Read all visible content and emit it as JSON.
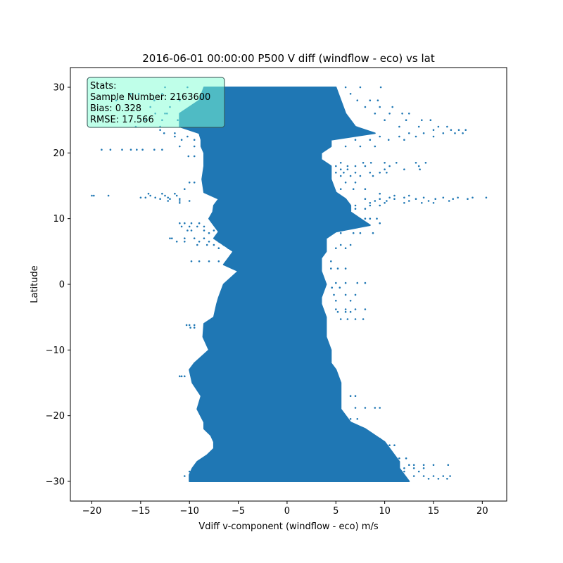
{
  "chart_data": {
    "type": "scatter",
    "title": "2016-06-01 00:00:00 P500 V diff (windflow - eco) vs lat",
    "xlabel": "Vdiff v-component (windflow - eco) m/s",
    "ylabel": "Latitude",
    "xlim": [
      -22.2,
      22.5
    ],
    "ylim": [
      -33,
      33
    ],
    "xticks": [
      -20,
      -15,
      -10,
      -5,
      0,
      5,
      10,
      15,
      20
    ],
    "xtick_labels": [
      "−20",
      "−15",
      "−10",
      "−5",
      "0",
      "5",
      "10",
      "15",
      "20"
    ],
    "yticks": [
      -30,
      -20,
      -10,
      0,
      10,
      20,
      30
    ],
    "ytick_labels": [
      "−30",
      "−20",
      "−10",
      "0",
      "10",
      "20",
      "30"
    ],
    "grid": false,
    "marker_color": "#1f77b4",
    "series": [
      {
        "envelope": {
          "lat": [
            30,
            28,
            26,
            24,
            23,
            22,
            21,
            20,
            19,
            18,
            16,
            14,
            13,
            12,
            11,
            10,
            9,
            8,
            7,
            6,
            5,
            4,
            3,
            2,
            0,
            -2,
            -3,
            -5,
            -6,
            -8,
            -10,
            -12,
            -13,
            -15,
            -17,
            -19,
            -21,
            -22,
            -23,
            -24,
            -25,
            -26,
            -27,
            -28,
            -29,
            -30
          ],
          "left": [
            -8.5,
            -9,
            -11,
            -11,
            -9,
            -8.8,
            -8.8,
            -8.5,
            -8.5,
            -8.5,
            -8.7,
            -8.5,
            -7,
            -7.5,
            -7.6,
            -8,
            -7.5,
            -7,
            -7.5,
            -6.5,
            -5.5,
            -6,
            -6.5,
            -5,
            -6.5,
            -7,
            -7.2,
            -7.5,
            -8.5,
            -8.6,
            -8,
            -9.5,
            -10,
            -9.7,
            -8.8,
            -9.2,
            -8.5,
            -8.5,
            -7.8,
            -7.5,
            -7.5,
            -8.2,
            -9.2,
            -9.7,
            -10,
            -10
          ],
          "right": [
            5,
            5.5,
            6,
            7,
            9,
            4.5,
            4.5,
            3.5,
            3.5,
            4.5,
            4.5,
            5,
            6,
            6.5,
            6.5,
            7.5,
            8.5,
            5,
            4,
            4,
            4,
            3.5,
            3.5,
            3.5,
            4,
            3.5,
            3.5,
            4,
            4,
            4,
            4.5,
            4.5,
            5,
            5.5,
            5.5,
            5.5,
            6.5,
            8,
            9,
            10,
            10.5,
            11,
            11.5,
            11.5,
            12,
            12.5
          ]
        },
        "outliers": [
          {
            "lat": 30,
            "x": [
              6.0,
              7.5,
              9.6,
              -10.2,
              -12.5
            ]
          },
          {
            "lat": 29,
            "x": [
              6.5,
              -12.8,
              -15.2,
              -16.0
            ]
          },
          {
            "lat": 28,
            "x": [
              7.2,
              8.5,
              9.3,
              -11.0,
              -13.6,
              -17.5
            ]
          },
          {
            "lat": 27,
            "x": [
              8.0,
              9.5,
              10.8,
              -12.0,
              -14.0
            ]
          },
          {
            "lat": 26,
            "x": [
              9.0,
              10.5,
              12.5,
              11.8,
              -12.5,
              -13.5,
              -12.3
            ]
          },
          {
            "lat": 25,
            "x": [
              10.0,
              12.2,
              13.8,
              14.7,
              -11.2,
              -12.8,
              -14.5
            ]
          },
          {
            "lat": 24,
            "x": [
              11.5,
              13.5,
              15.5,
              16.4,
              -13.0,
              -15.5
            ]
          },
          {
            "lat": 23.5,
            "x": [
              15.0,
              16.8,
              17.6,
              18.3,
              -13.0
            ]
          },
          {
            "lat": 23,
            "x": [
              12.5,
              14.0,
              16.0,
              17.2,
              18.0,
              -11.5,
              -12.6
            ]
          },
          {
            "lat": 22.5,
            "x": [
              9.5,
              11.5,
              13.2,
              15.0,
              -10.2,
              -11.5
            ]
          },
          {
            "lat": 22,
            "x": [
              7.0,
              8.5,
              10.4,
              12.0,
              -9.5,
              -10.8
            ]
          },
          {
            "lat": 21,
            "x": [
              6.0,
              7.5,
              9.0,
              -9.5,
              -11.0
            ]
          },
          {
            "lat": 20.5,
            "x": [
              -14.8,
              -15.4,
              -16.0,
              -16.9,
              -18.1,
              -19.0,
              -12.8,
              -13.6
            ]
          },
          {
            "lat": 19.5,
            "x": [
              -9.5,
              -10.1
            ]
          },
          {
            "lat": 18.5,
            "x": [
              5.5,
              7.8,
              8.6,
              10.0,
              11.2,
              13.2,
              14.2
            ]
          },
          {
            "lat": 18,
            "x": [
              5.0,
              6.2,
              7.0,
              8.0,
              10.5,
              13.5
            ]
          },
          {
            "lat": 17.5,
            "x": [
              5.5,
              6.2,
              10.0,
              12.0,
              13.6
            ]
          },
          {
            "lat": 17,
            "x": [
              5.0,
              5.8,
              7.0,
              8.5,
              9.5,
              10.2
            ]
          },
          {
            "lat": 16.5,
            "x": [
              5.5,
              6.5,
              7.5,
              8.8
            ]
          },
          {
            "lat": 15.5,
            "x": [
              -9.5,
              -10.0,
              6.0,
              7.0
            ]
          },
          {
            "lat": 14.5,
            "x": [
              -10.5,
              5.5,
              6.8,
              8.0
            ]
          },
          {
            "lat": 13.8,
            "x": [
              -11.5,
              -12.8,
              -14.2,
              9.5
            ]
          },
          {
            "lat": 13.5,
            "x": [
              -20.0,
              -19.8,
              -18.3,
              -14.0,
              -12.5,
              -11.3,
              11.0,
              12.5
            ]
          },
          {
            "lat": 13.2,
            "x": [
              -15.0,
              -14.5,
              -13.5,
              -12.2,
              10.5,
              12.0,
              14.0,
              16.0,
              17.5,
              19.0,
              20.4
            ]
          },
          {
            "lat": 13,
            "x": [
              -13.0,
              -12.0,
              -11.0,
              8.0,
              9.5,
              11.0,
              13.2,
              15.2,
              17.0,
              18.5
            ]
          },
          {
            "lat": 12.7,
            "x": [
              -12.2,
              -11.0,
              -10.0,
              9.0,
              10.2,
              12.5,
              14.5,
              16.6
            ]
          },
          {
            "lat": 12.4,
            "x": [
              -11.0,
              8.5,
              10.0,
              12.0,
              13.8,
              15.0
            ]
          },
          {
            "lat": 12,
            "x": [
              7.0,
              8.5,
              9.5
            ]
          },
          {
            "lat": 11.5,
            "x": [
              7.0,
              8.0
            ]
          },
          {
            "lat": 10,
            "x": [
              8.0,
              8.5,
              9.2
            ]
          },
          {
            "lat": 9.3,
            "x": [
              -9.0,
              -9.8,
              -10.5,
              -11.0,
              9.5
            ]
          },
          {
            "lat": 8.8,
            "x": [
              -8.5,
              -9.2,
              -10.0,
              -10.8
            ]
          },
          {
            "lat": 8.2,
            "x": [
              -7.5,
              -8.5,
              -9.8,
              -10.2
            ]
          },
          {
            "lat": 7.8,
            "x": [
              -8.0,
              5.5,
              6.8,
              7.5,
              8.8
            ]
          },
          {
            "lat": 7,
            "x": [
              -8.5,
              -9.5,
              -10.5,
              -11.8,
              -12.0
            ]
          },
          {
            "lat": 6.5,
            "x": [
              -7.0,
              -8.0,
              -9.0,
              -10.5,
              -11.3
            ]
          },
          {
            "lat": 6,
            "x": [
              -6.5,
              -7.5,
              -8.2,
              -9.2,
              5.5,
              6.5
            ]
          },
          {
            "lat": 5.5,
            "x": [
              -6.0,
              -7.0,
              5.0,
              6.0
            ]
          },
          {
            "lat": 3.5,
            "x": [
              -7.0,
              -8.0,
              -9.0,
              -9.8,
              4.5
            ]
          },
          {
            "lat": 2.4,
            "x": [
              4.5,
              5.2,
              6.0
            ]
          },
          {
            "lat": 0.2,
            "x": [
              5.0,
              6.0,
              7.2,
              8.0
            ]
          },
          {
            "lat": -0.5,
            "x": [
              4.6,
              5.4
            ]
          },
          {
            "lat": -1.6,
            "x": [
              4.8,
              6.0,
              7.0
            ]
          },
          {
            "lat": -2.5,
            "x": [
              5.0,
              6.5
            ]
          },
          {
            "lat": -3.8,
            "x": [
              5.0,
              6.0,
              7.0,
              8.0
            ]
          },
          {
            "lat": -4.2,
            "x": [
              5.2,
              6.0,
              6.5
            ]
          },
          {
            "lat": -5.3,
            "x": [
              5.5,
              6.2,
              7.0,
              7.8
            ]
          },
          {
            "lat": -6.2,
            "x": [
              -9.5,
              -10.0,
              -10.3
            ]
          },
          {
            "lat": -6.6,
            "x": [
              -9.5,
              -9.9
            ]
          },
          {
            "lat": -14.0,
            "x": [
              -10.5,
              -10.8,
              -11.0
            ]
          },
          {
            "lat": -17.0,
            "x": [
              6.5,
              7.0
            ]
          },
          {
            "lat": -18.8,
            "x": [
              7.0,
              8.0,
              9.0,
              9.5
            ]
          },
          {
            "lat": -20.5,
            "x": [
              6.5,
              7.2
            ]
          },
          {
            "lat": -23.5,
            "x": [
              9.0,
              9.5
            ]
          },
          {
            "lat": -24.5,
            "x": [
              10.5,
              11.0
            ]
          },
          {
            "lat": -26.5,
            "x": [
              11.5,
              12.2
            ]
          },
          {
            "lat": -27.5,
            "x": [
              12.5,
              13.0,
              14.0,
              15.0,
              16.5
            ]
          },
          {
            "lat": -28.0,
            "x": [
              12.0,
              13.0,
              14.0
            ]
          },
          {
            "lat": -28.5,
            "x": [
              -10.0,
              12.0,
              13.5
            ]
          },
          {
            "lat": -29.2,
            "x": [
              -10.5,
              13.0,
              14.0,
              15.0,
              16.0,
              16.7
            ]
          },
          {
            "lat": -29.6,
            "x": [
              14.5,
              15.5,
              16.4
            ]
          }
        ]
      }
    ]
  },
  "stats_box": {
    "lines": [
      "Stats:",
      "Sample Number: 2163600",
      "Bias: 0.328",
      "RMSE: 17.566"
    ],
    "fill": "#7fffd4",
    "fill_opacity": 0.5,
    "border": "#2f4f4f"
  }
}
